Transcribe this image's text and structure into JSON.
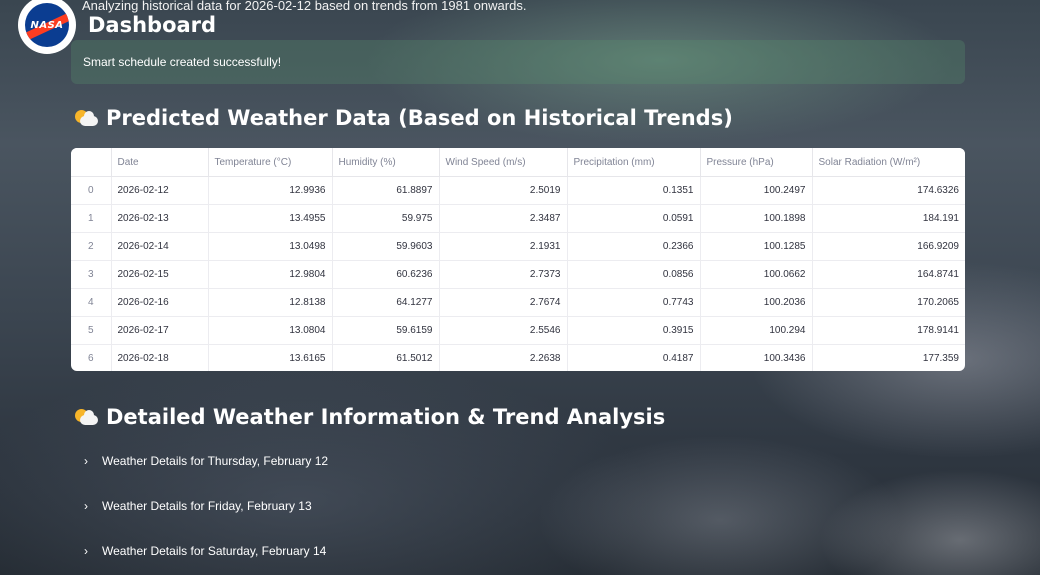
{
  "header": {
    "subtitle": "Analyzing historical data for 2026-02-12 based on trends from 1981 onwards.",
    "title": "Dashboard",
    "logo_text": "NASA"
  },
  "alert": {
    "message": "Smart schedule created successfully!",
    "color": "#5a966e"
  },
  "predicted": {
    "title": "Predicted Weather Data (Based on Historical Trends)",
    "icon": "sun-behind-cloud-icon",
    "columns": [
      "",
      "Date",
      "Temperature (°C)",
      "Humidity (%)",
      "Wind Speed (m/s)",
      "Precipitation (mm)",
      "Pressure (hPa)",
      "Solar Radiation (W/m²)"
    ],
    "rows": [
      [
        "0",
        "2026-02-12",
        "12.9936",
        "61.8897",
        "2.5019",
        "0.1351",
        "100.2497",
        "174.6326"
      ],
      [
        "1",
        "2026-02-13",
        "13.4955",
        "59.975",
        "2.3487",
        "0.0591",
        "100.1898",
        "184.191"
      ],
      [
        "2",
        "2026-02-14",
        "13.0498",
        "59.9603",
        "2.1931",
        "0.2366",
        "100.1285",
        "166.9209"
      ],
      [
        "3",
        "2026-02-15",
        "12.9804",
        "60.6236",
        "2.7373",
        "0.0856",
        "100.0662",
        "164.8741"
      ],
      [
        "4",
        "2026-02-16",
        "12.8138",
        "64.1277",
        "2.7674",
        "0.7743",
        "100.2036",
        "170.2065"
      ],
      [
        "5",
        "2026-02-17",
        "13.0804",
        "59.6159",
        "2.5546",
        "0.3915",
        "100.294",
        "178.9141"
      ],
      [
        "6",
        "2026-02-18",
        "13.6165",
        "61.5012",
        "2.2638",
        "0.4187",
        "100.3436",
        "177.359"
      ]
    ]
  },
  "details": {
    "title": "Detailed Weather Information & Trend Analysis",
    "icon": "sun-behind-cloud-icon",
    "expanders": [
      "Weather Details for Thursday, February 12",
      "Weather Details for Friday, February 13",
      "Weather Details for Saturday, February 14"
    ]
  }
}
